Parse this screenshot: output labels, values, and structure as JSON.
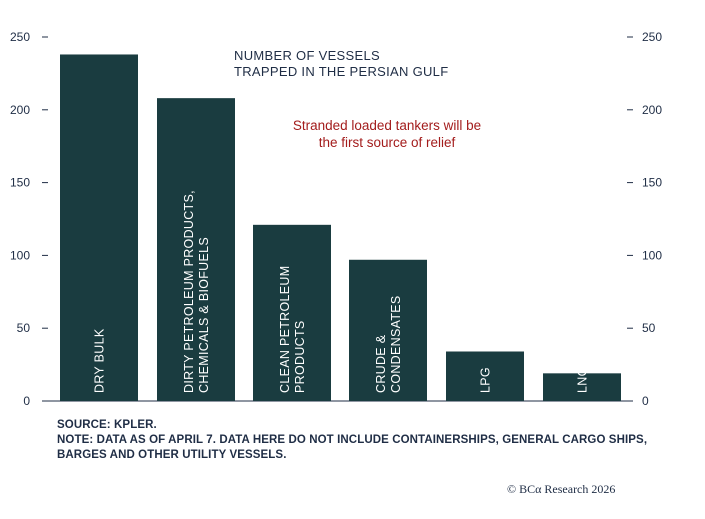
{
  "chart_data": {
    "type": "bar",
    "title": "NUMBER OF VESSELS\nTRAPPED IN THE PERSIAN GULF",
    "annotation": "Stranded loaded tankers will be\nthe first source of relief",
    "categories": [
      "DRY BULK",
      "DIRTY PETROLEUM PRODUCTS,\nCHEMICALS & BIOFUELS",
      "CLEAN PETROLEUM\nPRODUCTS",
      "CRUDE &\nCONDENSATES",
      "LPG",
      "LNG"
    ],
    "values": [
      238,
      208,
      121,
      97,
      34,
      19
    ],
    "ylim": [
      0,
      250
    ],
    "yticks": [
      0,
      50,
      100,
      150,
      200,
      250
    ],
    "right_axis": true,
    "grid": false,
    "colors": {
      "bar": "#1a3c40",
      "title": "#1f2d45",
      "annotation": "#a31c1c",
      "axis": "#1f2d45"
    }
  },
  "footer": {
    "source": "SOURCE: KPLER.",
    "note_line1": "NOTE: DATA AS OF APRIL 7. DATA HERE DO NOT INCLUDE CONTAINERSHIPS, GENERAL CARGO SHIPS,",
    "note_line2": "BARGES AND OTHER UTILITY VESSELS."
  },
  "credit": "© BCα Research 2026"
}
